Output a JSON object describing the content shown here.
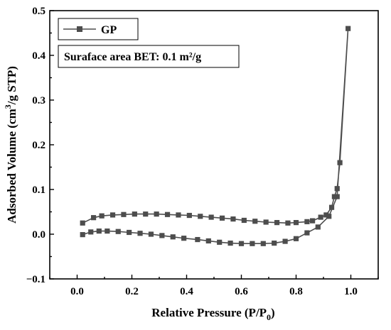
{
  "chart_data": {
    "type": "line",
    "xlabel": "Relative Pressure (P/P",
    "xlabel_sub": "0",
    "xlabel_tail": ")",
    "ylabel_main": "Adsorbed Volume (cm",
    "ylabel_sup": "3",
    "ylabel_tail": "/g STP)",
    "xlim": [
      -0.1,
      1.1
    ],
    "ylim": [
      -0.1,
      0.5
    ],
    "xticks": [
      "0.0",
      "0.2",
      "0.4",
      "0.6",
      "0.8",
      "1.0"
    ],
    "yticks": [
      "−0.1",
      "0.0",
      "0.1",
      "0.2",
      "0.3",
      "0.4",
      "0.5"
    ],
    "xtick_values": [
      0.0,
      0.2,
      0.4,
      0.6,
      0.8,
      1.0
    ],
    "ytick_values": [
      -0.1,
      0.0,
      0.1,
      0.2,
      0.3,
      0.4,
      0.5
    ],
    "legend_position": "top-left",
    "annotation": "Suraface area BET: 0.1 m²/g",
    "series": [
      {
        "name": "GP",
        "color": "#4d4d4d",
        "marker": "square",
        "x": [
          0.02,
          0.05,
          0.08,
          0.11,
          0.15,
          0.19,
          0.23,
          0.27,
          0.31,
          0.35,
          0.39,
          0.44,
          0.48,
          0.52,
          0.56,
          0.6,
          0.64,
          0.68,
          0.72,
          0.76,
          0.8,
          0.84,
          0.88,
          0.92,
          0.95,
          0.99,
          0.96,
          0.95,
          0.94,
          0.93,
          0.91,
          0.89,
          0.86,
          0.84,
          0.8,
          0.77,
          0.73,
          0.69,
          0.65,
          0.61,
          0.57,
          0.53,
          0.49,
          0.45,
          0.41,
          0.37,
          0.33,
          0.29,
          0.25,
          0.21,
          0.17,
          0.13,
          0.09,
          0.06,
          0.02
        ],
        "y": [
          -0.001,
          0.005,
          0.007,
          0.007,
          0.006,
          0.004,
          0.002,
          0.0,
          -0.003,
          -0.006,
          -0.009,
          -0.012,
          -0.015,
          -0.018,
          -0.02,
          -0.021,
          -0.021,
          -0.021,
          -0.02,
          -0.016,
          -0.01,
          0.003,
          0.016,
          0.04,
          0.084,
          0.46,
          0.16,
          0.102,
          0.084,
          0.06,
          0.043,
          0.038,
          0.03,
          0.028,
          0.026,
          0.025,
          0.026,
          0.027,
          0.029,
          0.031,
          0.034,
          0.036,
          0.038,
          0.04,
          0.042,
          0.043,
          0.044,
          0.045,
          0.045,
          0.045,
          0.044,
          0.043,
          0.041,
          0.037,
          0.025
        ]
      }
    ]
  }
}
